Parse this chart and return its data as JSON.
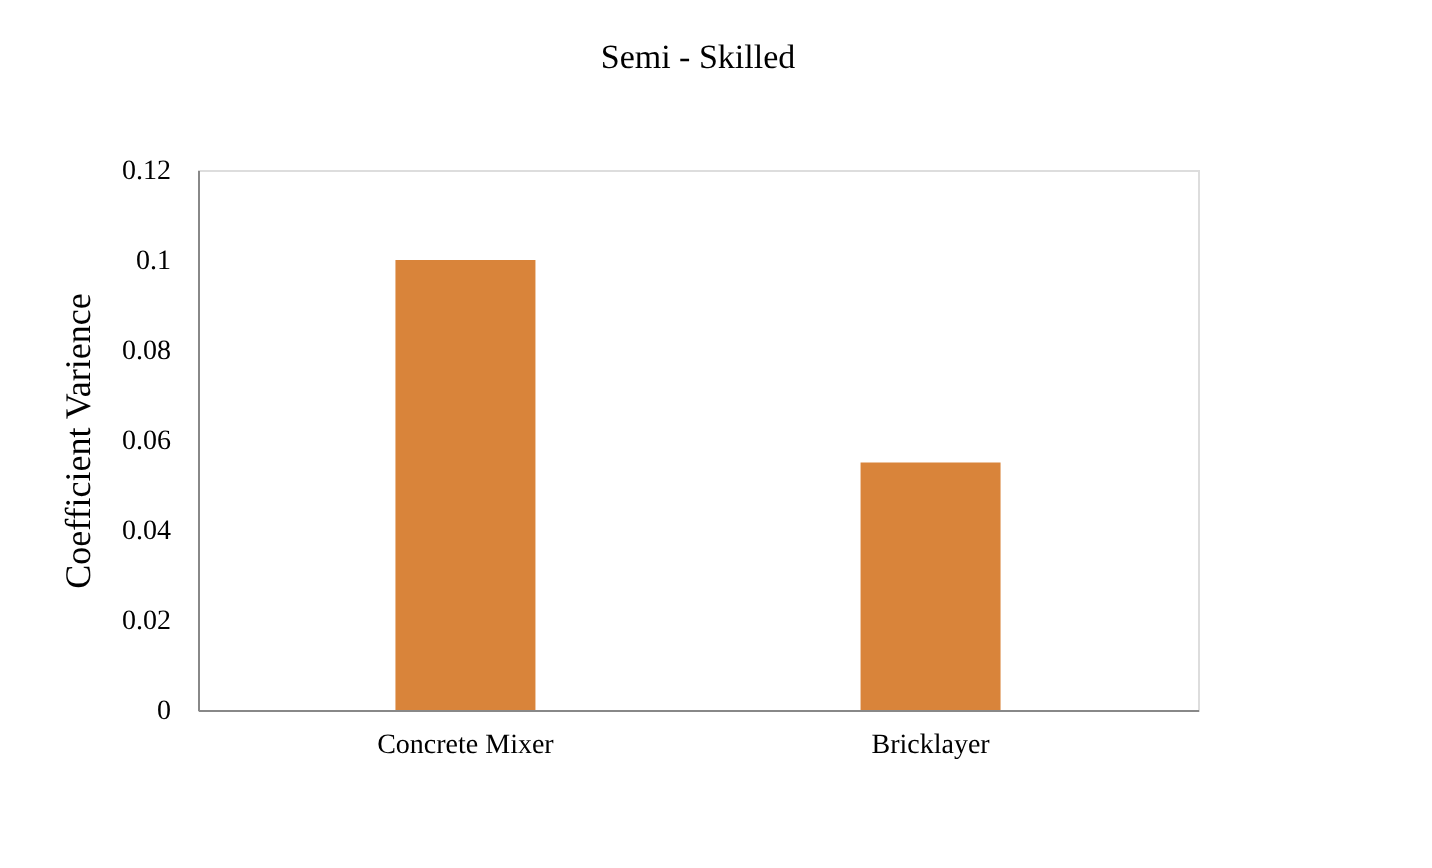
{
  "chart_data": {
    "type": "bar",
    "title": "Semi - Skilled",
    "ylabel": "Coefficient Varience",
    "categories": [
      "Concrete Mixer",
      "Bricklayer"
    ],
    "values": [
      0.1,
      0.055
    ],
    "color": "#d9843a",
    "ylim": [
      0,
      0.12
    ],
    "yticks": [
      0,
      0.02,
      0.04,
      0.06,
      0.08,
      0.1,
      0.12
    ],
    "grid": false
  }
}
